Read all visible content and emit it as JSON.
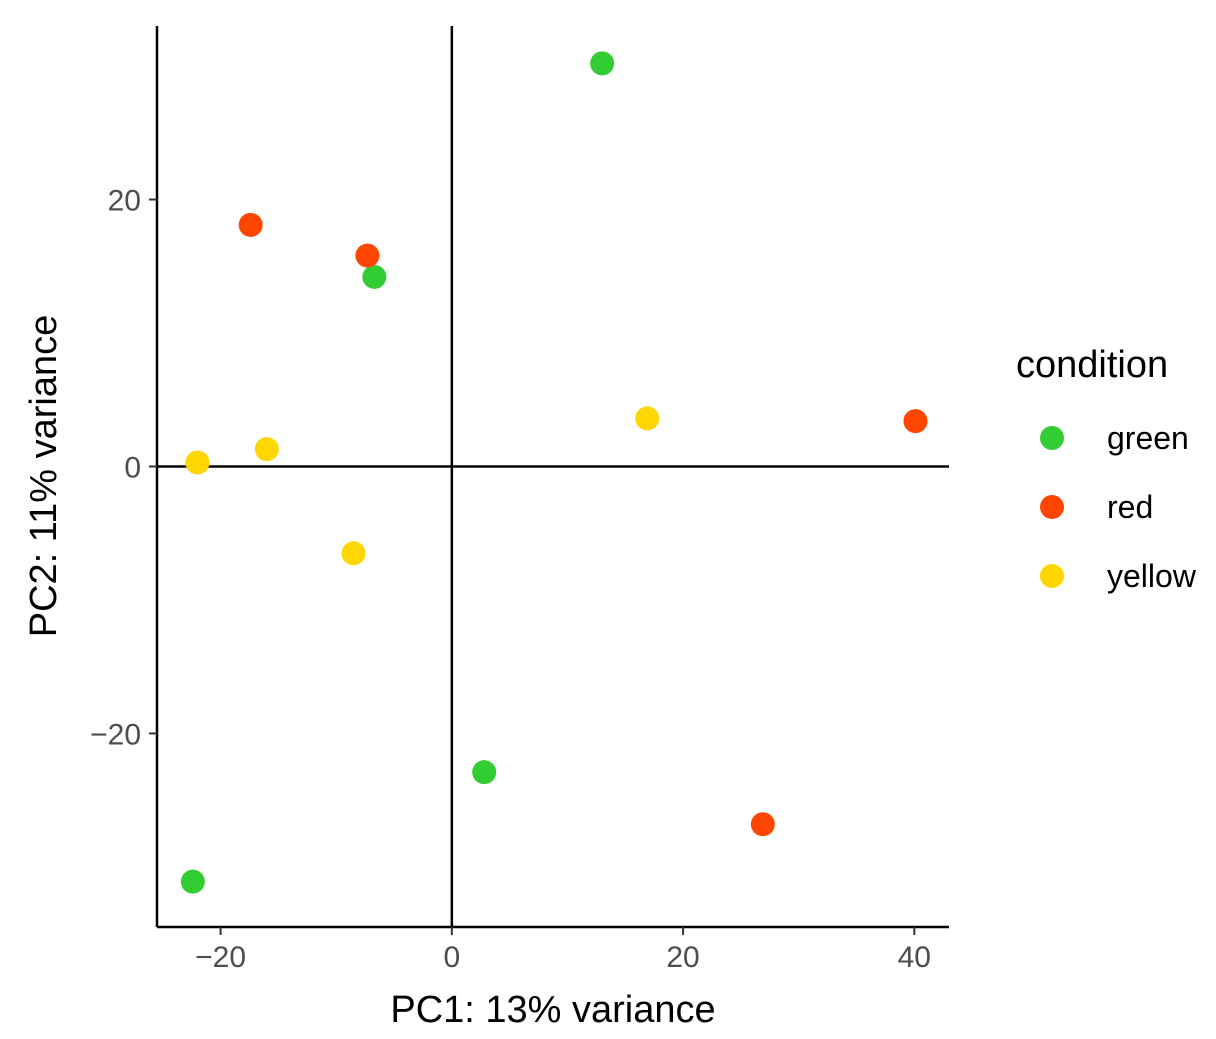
{
  "chart_data": {
    "type": "scatter",
    "title": "",
    "xlabel": "PC1: 13% variance",
    "ylabel": "PC2: 11% variance",
    "xlim": [
      -25.5,
      43
    ],
    "ylim": [
      -34.5,
      33
    ],
    "x_ticks": [
      -20,
      0,
      20,
      40
    ],
    "y_ticks": [
      -20,
      0,
      20
    ],
    "x_tick_labels": [
      "−20",
      "0",
      "20",
      "40"
    ],
    "y_tick_labels": [
      "−20",
      "0",
      "20"
    ],
    "reference_lines": {
      "x": 0,
      "y": 0
    },
    "grid": false,
    "legend": {
      "title": "condition",
      "position": "right"
    },
    "series": [
      {
        "name": "green",
        "color": "#32CD32",
        "points": [
          {
            "x": 13.0,
            "y": 30.2
          },
          {
            "x": -6.7,
            "y": 14.2
          },
          {
            "x": 2.8,
            "y": -22.9
          },
          {
            "x": -22.4,
            "y": -31.1
          }
        ]
      },
      {
        "name": "red",
        "color": "#FF4500",
        "points": [
          {
            "x": -17.4,
            "y": 18.1
          },
          {
            "x": -7.3,
            "y": 15.8
          },
          {
            "x": 40.1,
            "y": 3.4
          },
          {
            "x": 26.9,
            "y": -26.8
          }
        ]
      },
      {
        "name": "yellow",
        "color": "#FFD700",
        "points": [
          {
            "x": -22.0,
            "y": 0.3
          },
          {
            "x": -16.0,
            "y": 1.3
          },
          {
            "x": 16.9,
            "y": 3.6
          },
          {
            "x": -8.5,
            "y": -6.5
          }
        ]
      }
    ]
  }
}
